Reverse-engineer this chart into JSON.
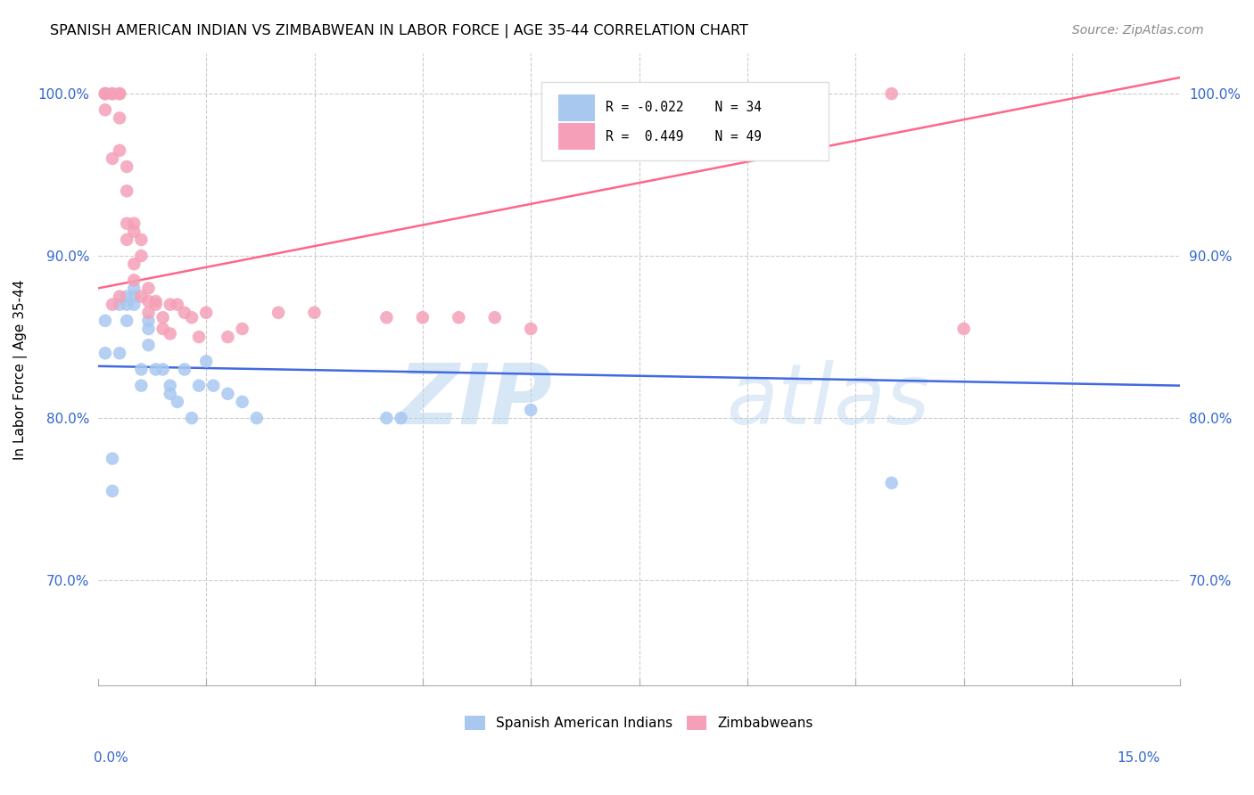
{
  "title": "SPANISH AMERICAN INDIAN VS ZIMBABWEAN IN LABOR FORCE | AGE 35-44 CORRELATION CHART",
  "source": "Source: ZipAtlas.com",
  "ylabel": "In Labor Force | Age 35-44",
  "ytick_labels": [
    "70.0%",
    "80.0%",
    "90.0%",
    "100.0%"
  ],
  "ytick_values": [
    0.7,
    0.8,
    0.9,
    1.0
  ],
  "xlim": [
    0.0,
    0.15
  ],
  "ylim": [
    0.635,
    1.025
  ],
  "blue_color": "#a8c8f0",
  "pink_color": "#f5a0b8",
  "blue_line_color": "#4169E1",
  "pink_line_color": "#FF6688",
  "watermark": "ZIPatlas",
  "legend_blue_r": "R = -0.022",
  "legend_blue_n": "N = 34",
  "legend_pink_r": "R =  0.449",
  "legend_pink_n": "N = 49",
  "blue_scatter_x": [
    0.001,
    0.001,
    0.002,
    0.002,
    0.003,
    0.003,
    0.004,
    0.004,
    0.004,
    0.005,
    0.005,
    0.005,
    0.006,
    0.006,
    0.007,
    0.007,
    0.007,
    0.008,
    0.009,
    0.01,
    0.01,
    0.011,
    0.012,
    0.013,
    0.014,
    0.015,
    0.016,
    0.018,
    0.02,
    0.022,
    0.04,
    0.042,
    0.06,
    0.11
  ],
  "blue_scatter_y": [
    0.84,
    0.86,
    0.775,
    0.755,
    0.84,
    0.87,
    0.875,
    0.86,
    0.87,
    0.875,
    0.88,
    0.87,
    0.82,
    0.83,
    0.845,
    0.855,
    0.86,
    0.83,
    0.83,
    0.82,
    0.815,
    0.81,
    0.83,
    0.8,
    0.82,
    0.835,
    0.82,
    0.815,
    0.81,
    0.8,
    0.8,
    0.8,
    0.805,
    0.76
  ],
  "pink_scatter_x": [
    0.001,
    0.001,
    0.001,
    0.001,
    0.002,
    0.002,
    0.002,
    0.002,
    0.003,
    0.003,
    0.003,
    0.003,
    0.003,
    0.004,
    0.004,
    0.004,
    0.004,
    0.005,
    0.005,
    0.005,
    0.005,
    0.006,
    0.006,
    0.006,
    0.007,
    0.007,
    0.007,
    0.008,
    0.008,
    0.009,
    0.009,
    0.01,
    0.01,
    0.011,
    0.012,
    0.013,
    0.014,
    0.015,
    0.018,
    0.02,
    0.025,
    0.03,
    0.04,
    0.045,
    0.05,
    0.055,
    0.06,
    0.11,
    0.12
  ],
  "pink_scatter_y": [
    1.0,
    1.0,
    1.0,
    0.99,
    1.0,
    1.0,
    0.96,
    0.87,
    1.0,
    1.0,
    0.985,
    0.965,
    0.875,
    0.955,
    0.94,
    0.92,
    0.91,
    0.92,
    0.915,
    0.895,
    0.885,
    0.91,
    0.9,
    0.875,
    0.88,
    0.872,
    0.865,
    0.872,
    0.87,
    0.862,
    0.855,
    0.87,
    0.852,
    0.87,
    0.865,
    0.862,
    0.85,
    0.865,
    0.85,
    0.855,
    0.865,
    0.865,
    0.862,
    0.862,
    0.862,
    0.862,
    0.855,
    1.0,
    0.855
  ],
  "blue_trend_x": [
    0.0,
    0.15
  ],
  "blue_trend_y": [
    0.832,
    0.82
  ],
  "pink_trend_x": [
    0.0,
    0.15
  ],
  "pink_trend_y": [
    0.88,
    1.01
  ]
}
